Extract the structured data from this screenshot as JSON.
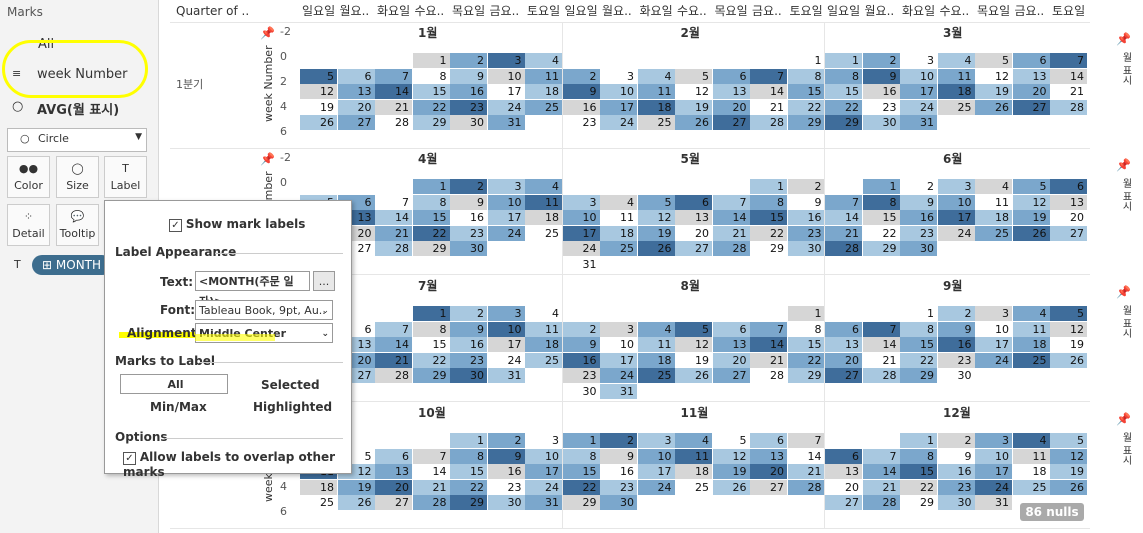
{
  "marks": {
    "title": "Marks",
    "all_label": "All",
    "week_label": "week Number",
    "avg_label": "AVG(월 표시)",
    "mark_type": "Circle",
    "cards": [
      {
        "label": "Color",
        "icon": "●●"
      },
      {
        "label": "Size",
        "icon": "◯"
      },
      {
        "label": "Label",
        "icon": "T"
      },
      {
        "label": "Detail",
        "icon": "⁘"
      },
      {
        "label": "Tooltip",
        "icon": "💬"
      }
    ],
    "pill_label": "MONTH"
  },
  "viz": {
    "quarter_header": "Quarter of ..",
    "day_headers": [
      "일요일",
      "월요..",
      "화요일",
      "수요..",
      "목요일",
      "금요..",
      "토요일"
    ],
    "quarter1_label": "1분기",
    "week_axis_label": "week Number",
    "axis_ticks": [
      "-2",
      "0",
      "2",
      "4",
      "6"
    ],
    "right_label": "월 표시",
    "nulls_badge": "86 nulls",
    "months": [
      "1월",
      "2월",
      "3월",
      "4월",
      "5월",
      "6월",
      "7월",
      "8월",
      "9월",
      "10월",
      "11월",
      "12월"
    ],
    "colors": {
      "light": "#a8c8e0",
      "mid": "#7ba7cc",
      "dark": "#3f6d9b",
      "gray": "#d6d6d6",
      "white": "#ffffff"
    }
  },
  "dialog": {
    "show_labels": "Show mark labels",
    "label_appearance": "Label Appearance",
    "text_label": "Text:",
    "text_value": "<MONTH(주문 일자)>",
    "text_button": "...",
    "font_label": "Font:",
    "font_value": "Tableau Book, 9pt, Au..",
    "alignment_label": "Alignment:",
    "alignment_value": "Middle Center",
    "marks_to_label": "Marks to Label",
    "opt_all": "All",
    "opt_selected": "Selected",
    "opt_minmax": "Min/Max",
    "opt_highlighted": "Highlighted",
    "options": "Options",
    "allow_overlap": "Allow labels to overlap other marks"
  }
}
